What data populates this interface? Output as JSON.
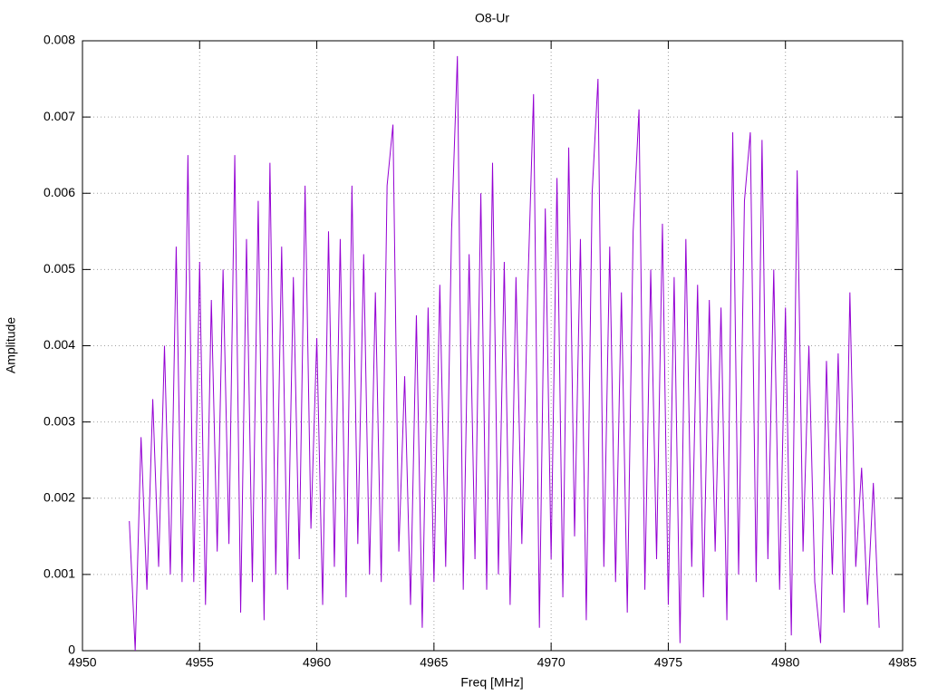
{
  "chart_data": {
    "type": "line",
    "title": "O8-Ur",
    "x_label": "Freq [MHz]",
    "y_label": "Amplitude",
    "x": [
      4952.0,
      4952.25,
      4952.5,
      4952.75,
      4953.0,
      4953.25,
      4953.5,
      4953.75,
      4954.0,
      4954.25,
      4954.5,
      4954.75,
      4955.0,
      4955.25,
      4955.5,
      4955.75,
      4956.0,
      4956.25,
      4956.5,
      4956.75,
      4957.0,
      4957.25,
      4957.5,
      4957.75,
      4958.0,
      4958.25,
      4958.5,
      4958.75,
      4959.0,
      4959.25,
      4959.5,
      4959.75,
      4960.0,
      4960.25,
      4960.5,
      4960.75,
      4961.0,
      4961.25,
      4961.5,
      4961.75,
      4962.0,
      4962.25,
      4962.5,
      4962.75,
      4963.0,
      4963.25,
      4963.5,
      4963.75,
      4964.0,
      4964.25,
      4964.5,
      4964.75,
      4965.0,
      4965.25,
      4965.5,
      4965.75,
      4966.0,
      4966.25,
      4966.5,
      4966.75,
      4967.0,
      4967.25,
      4967.5,
      4967.75,
      4968.0,
      4968.25,
      4968.5,
      4968.75,
      4969.0,
      4969.25,
      4969.5,
      4969.75,
      4970.0,
      4970.25,
      4970.5,
      4970.75,
      4971.0,
      4971.25,
      4971.5,
      4971.75,
      4972.0,
      4972.25,
      4972.5,
      4972.75,
      4973.0,
      4973.25,
      4973.5,
      4973.75,
      4974.0,
      4974.25,
      4974.5,
      4974.75,
      4975.0,
      4975.25,
      4975.5,
      4975.75,
      4976.0,
      4976.25,
      4976.5,
      4976.75,
      4977.0,
      4977.25,
      4977.5,
      4977.75,
      4978.0,
      4978.25,
      4978.5,
      4978.75,
      4979.0,
      4979.25,
      4979.5,
      4979.75,
      4980.0,
      4980.25,
      4980.5,
      4980.75,
      4981.0,
      4981.25,
      4981.5,
      4981.75,
      4982.0,
      4982.25,
      4982.5,
      4982.75,
      4983.0,
      4983.25,
      4983.5,
      4983.75,
      4984.0
    ],
    "series": [
      {
        "color": "#9400d3",
        "values": [
          0.0017,
          0.0,
          0.0028,
          0.0008,
          0.0033,
          0.0011,
          0.004,
          0.001,
          0.0053,
          0.0009,
          0.0065,
          0.0009,
          0.0051,
          0.0006,
          0.0046,
          0.0013,
          0.005,
          0.0014,
          0.0065,
          0.0005,
          0.0054,
          0.0009,
          0.0059,
          0.0004,
          0.0064,
          0.001,
          0.0053,
          0.0008,
          0.0049,
          0.0012,
          0.0061,
          0.0016,
          0.0041,
          0.0006,
          0.0055,
          0.0011,
          0.0054,
          0.0007,
          0.0061,
          0.0014,
          0.0052,
          0.001,
          0.0047,
          0.0009,
          0.0061,
          0.0069,
          0.0013,
          0.0036,
          0.0006,
          0.0044,
          0.0003,
          0.0045,
          0.0009,
          0.0048,
          0.0011,
          0.0055,
          0.0078,
          0.0008,
          0.0052,
          0.0012,
          0.006,
          0.0008,
          0.0064,
          0.001,
          0.0051,
          0.0006,
          0.0049,
          0.0014,
          0.0047,
          0.0073,
          0.0003,
          0.0058,
          0.0012,
          0.0062,
          0.0007,
          0.0066,
          0.0015,
          0.0054,
          0.0004,
          0.006,
          0.0075,
          0.0011,
          0.0053,
          0.0009,
          0.0047,
          0.0005,
          0.0055,
          0.0071,
          0.0008,
          0.005,
          0.0012,
          0.0056,
          0.0006,
          0.0049,
          0.0001,
          0.0054,
          0.0011,
          0.0048,
          0.0007,
          0.0046,
          0.0013,
          0.0045,
          0.0004,
          0.0068,
          0.001,
          0.0059,
          0.0068,
          0.0009,
          0.0067,
          0.0012,
          0.005,
          0.0008,
          0.0045,
          0.0002,
          0.0063,
          0.0013,
          0.004,
          0.0009,
          0.0001,
          0.0038,
          0.001,
          0.0039,
          0.0005,
          0.0047,
          0.0011,
          0.0024,
          0.0006,
          0.0022,
          0.0003
        ]
      }
    ],
    "xlim": [
      4950,
      4985
    ],
    "xticks": [
      4950,
      4955,
      4960,
      4965,
      4970,
      4975,
      4980,
      4985
    ],
    "ylim": [
      0,
      0.008
    ],
    "yticks": [
      0,
      0.001,
      0.002,
      0.003,
      0.004,
      0.005,
      0.006,
      0.007,
      0.008
    ],
    "grid": true
  }
}
